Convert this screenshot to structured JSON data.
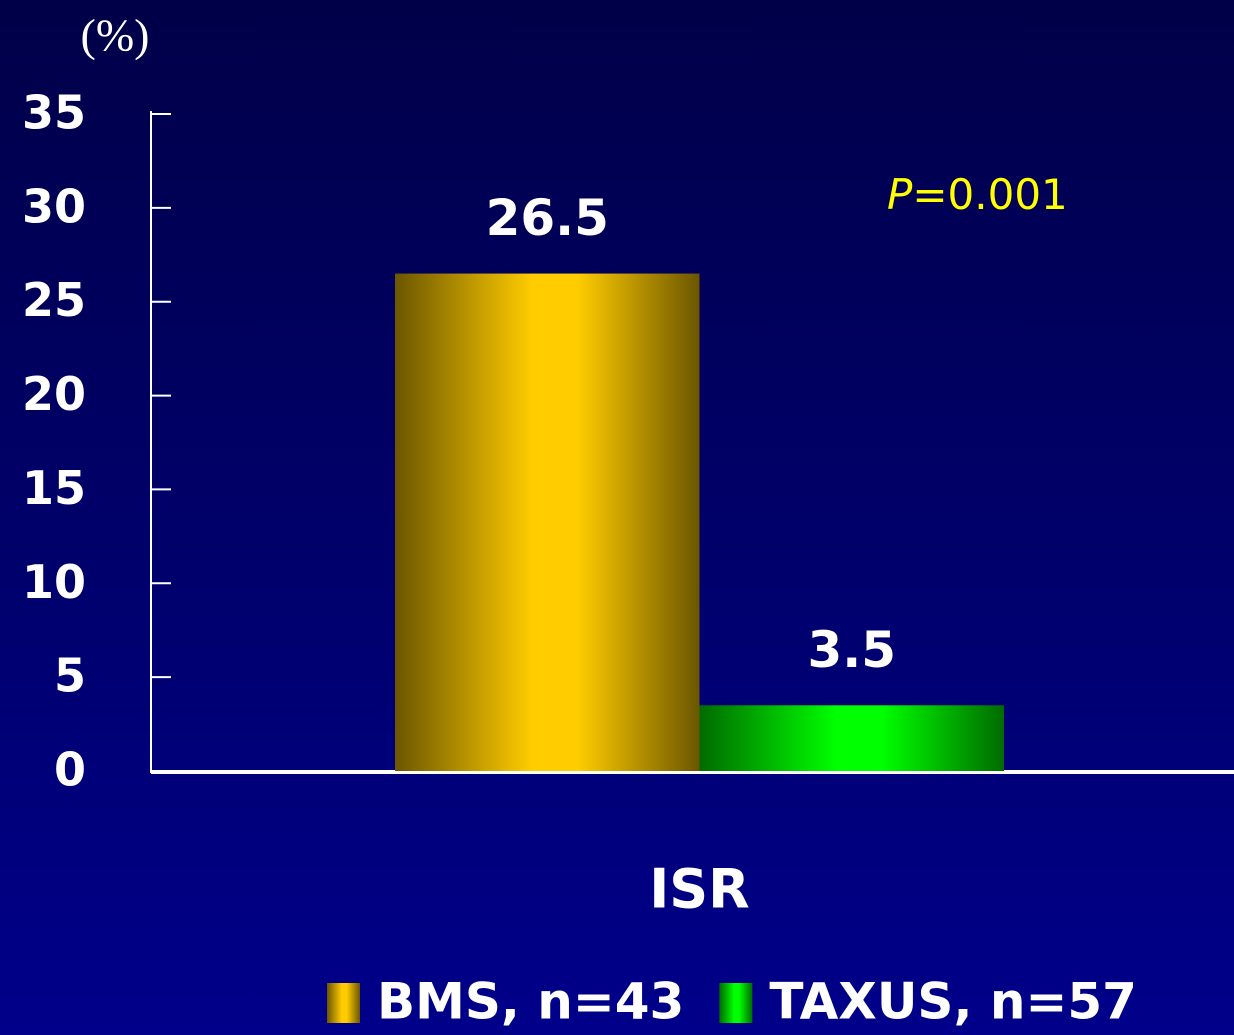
{
  "chart_data": {
    "type": "bar",
    "y_label": "(%)",
    "categories": [
      "ISR"
    ],
    "series": [
      {
        "name": "BMS, n=43",
        "color": "#ffcc00",
        "values": [
          26.5
        ]
      },
      {
        "name": "TAXUS, n=57",
        "color": "#00ff00",
        "values": [
          3.5
        ]
      }
    ],
    "annotation": {
      "symbol": "P",
      "text": "=0.001",
      "color": "#ffff00"
    },
    "ylim": [
      0,
      35
    ],
    "yticks": [
      0,
      5,
      10,
      15,
      20,
      25,
      30,
      35
    ],
    "grid": false
  }
}
